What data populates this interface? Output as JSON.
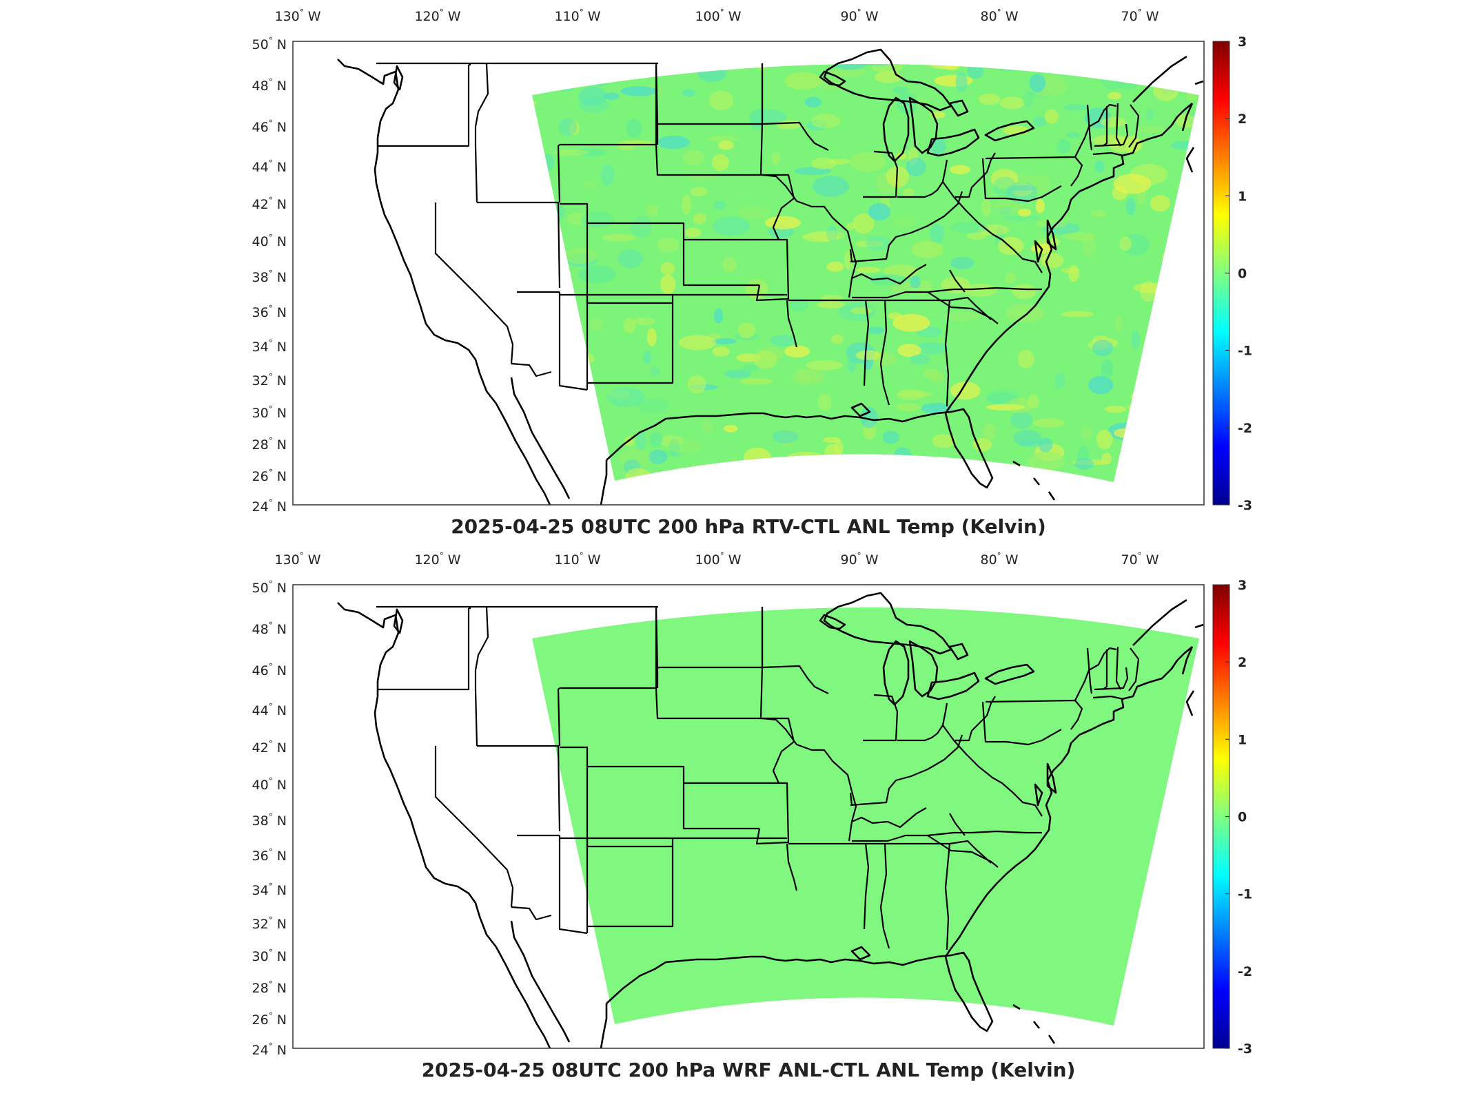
{
  "panels": [
    {
      "title": "2025-04-25 08UTC 200 hPa RTV-CTL ANL Temp (Kelvin)",
      "field_style": "noisy",
      "field_color": "#7cf47a"
    },
    {
      "title": "2025-04-25 08UTC 200 hPa WRF ANL-CTL ANL Temp (Kelvin)",
      "field_style": "uniform",
      "field_color": "#80f880"
    }
  ],
  "longitude_labels": [
    {
      "deg": "130",
      "hemi": "W"
    },
    {
      "deg": "120",
      "hemi": "W"
    },
    {
      "deg": "110",
      "hemi": "W"
    },
    {
      "deg": "100",
      "hemi": "W"
    },
    {
      "deg": "90",
      "hemi": "W"
    },
    {
      "deg": "80",
      "hemi": "W"
    },
    {
      "deg": "70",
      "hemi": "W"
    }
  ],
  "latitude_labels": [
    {
      "deg": "50",
      "hemi": "N"
    },
    {
      "deg": "48",
      "hemi": "N"
    },
    {
      "deg": "46",
      "hemi": "N"
    },
    {
      "deg": "44",
      "hemi": "N"
    },
    {
      "deg": "42",
      "hemi": "N"
    },
    {
      "deg": "40",
      "hemi": "N"
    },
    {
      "deg": "38",
      "hemi": "N"
    },
    {
      "deg": "36",
      "hemi": "N"
    },
    {
      "deg": "34",
      "hemi": "N"
    },
    {
      "deg": "32",
      "hemi": "N"
    },
    {
      "deg": "30",
      "hemi": "N"
    },
    {
      "deg": "28",
      "hemi": "N"
    },
    {
      "deg": "26",
      "hemi": "N"
    },
    {
      "deg": "24",
      "hemi": "N"
    }
  ],
  "colorbar": {
    "ticks": [
      "3",
      "2",
      "1",
      "0",
      "-1",
      "-2",
      "-3"
    ],
    "colors": [
      "#7f0000",
      "#ff0000",
      "#ff8000",
      "#ffff00",
      "#80ff80",
      "#00ffff",
      "#0080ff",
      "#0000ff",
      "#00008f"
    ]
  }
}
